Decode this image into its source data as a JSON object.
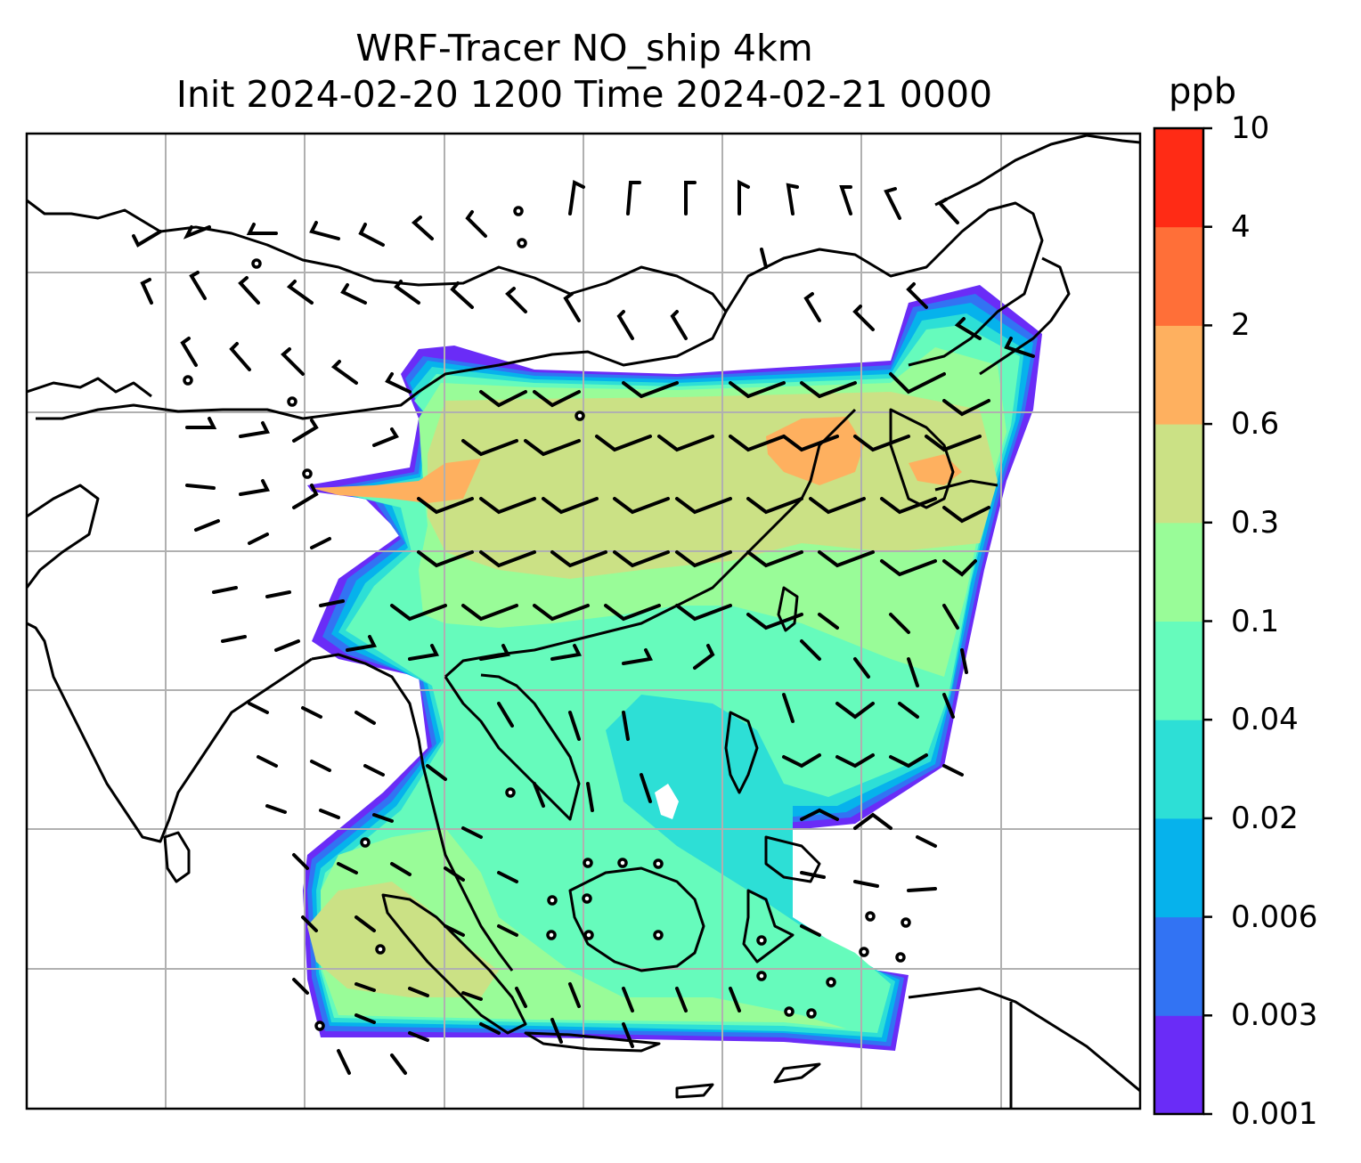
{
  "title": {
    "line1": "WRF-Tracer NO_ship 4km",
    "line2": "Init 2024-02-20 1200 Time 2024-02-21 0000"
  },
  "colorbar": {
    "unit": "ppb",
    "levels": [
      "0.001",
      "0.003",
      "0.006",
      "0.02",
      "0.04",
      "0.1",
      "0.3",
      "0.6",
      "2",
      "4",
      "10"
    ],
    "colors": [
      "#6a2cf7",
      "#3273f3",
      "#06b2ec",
      "#2ddfd6",
      "#66fbbc",
      "#99fc98",
      "#cbe185",
      "#feb05f",
      "#ff6f38",
      "#ff2b15"
    ]
  },
  "map": {
    "gridline_color": "#b0b0b0",
    "coastline_color": "#000000",
    "wind_barb_color": "#000000"
  }
}
